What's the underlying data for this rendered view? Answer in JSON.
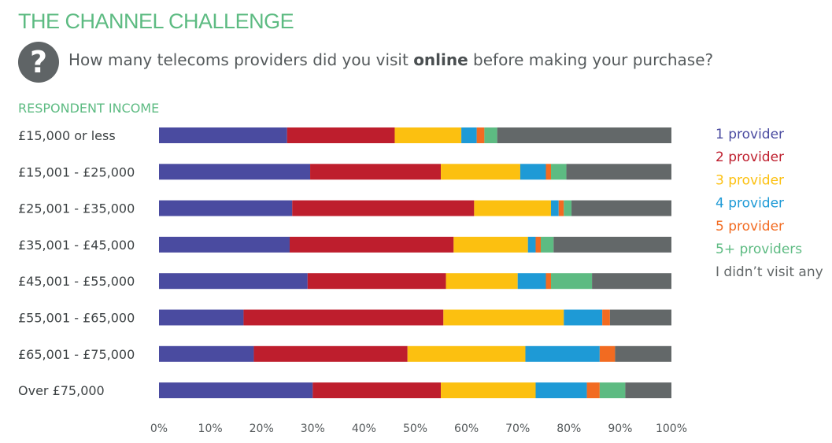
{
  "header": {
    "title": "THE CHANNEL CHALLENGE",
    "question_pre": "How many telecoms providers did you visit ",
    "question_bold": "online",
    "question_post": " before making your purchase?",
    "question_icon": "question-mark-icon",
    "subtitle": "RESPONDENT INCOME"
  },
  "colors": {
    "title": "#5dbb82",
    "icon_bg": "#5f6466"
  },
  "chart_data": {
    "type": "bar",
    "orientation": "horizontal",
    "stacked": true,
    "categories": [
      "£15,000 or less",
      "£15,001 - £25,000",
      "£25,001 - £35,000",
      "£35,001 - £45,000",
      "£45,001 - £55,000",
      "£55,001 - £65,000",
      "£65,001 - £75,000",
      "Over £75,000"
    ],
    "series": [
      {
        "name": "1 provider",
        "color": "#4a4ba0",
        "values": [
          25,
          29.5,
          26,
          25.5,
          29,
          16.5,
          18.5,
          30
        ]
      },
      {
        "name": "2 provider",
        "color": "#be1e2d",
        "values": [
          21,
          25.5,
          35.5,
          32,
          27,
          39,
          30,
          25
        ]
      },
      {
        "name": "3 provider",
        "color": "#fcc010",
        "values": [
          13,
          15.5,
          15,
          14.5,
          14,
          23.5,
          23,
          18.5
        ]
      },
      {
        "name": "4 provider",
        "color": "#1e9ad6",
        "values": [
          3,
          5,
          1.5,
          1.5,
          5.5,
          7.5,
          14.5,
          10
        ]
      },
      {
        "name": "5 provider",
        "color": "#f26b21",
        "values": [
          1.5,
          1,
          1,
          1,
          1,
          1.5,
          3,
          2.5
        ]
      },
      {
        "name": "5+ providers",
        "color": "#5dbb82",
        "values": [
          2.5,
          3,
          1.5,
          2.5,
          8,
          0,
          0,
          5
        ]
      },
      {
        "name": "I didn’t visit any",
        "color": "#636869",
        "values": [
          34,
          20.5,
          19.5,
          23,
          15.5,
          12,
          11,
          9
        ]
      }
    ],
    "xaxis": {
      "ticks": [
        "0%",
        "10%",
        "20%",
        "30%",
        "40%",
        "50%",
        "60%",
        "70%",
        "80%",
        "90%",
        "100%"
      ],
      "min": 0,
      "max": 100
    },
    "ylabel": "RESPONDENT INCOME",
    "legend": "right",
    "grid": false
  }
}
